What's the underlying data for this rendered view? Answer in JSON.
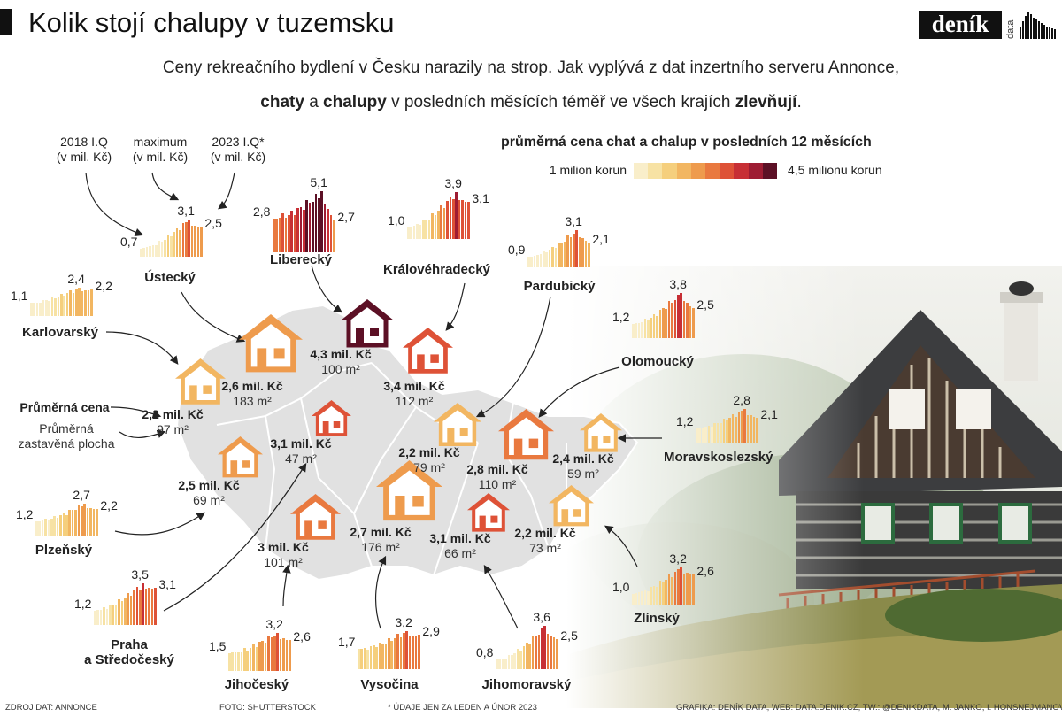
{
  "title": "Kolik stojí chalupy v tuzemsku",
  "logo": {
    "text": "deník",
    "sub": "data"
  },
  "subtitle": {
    "line1": "Ceny rekreačního bydlení v Česku narazily na strop. Jak vyplývá z dat inzertního serveru Annonce,",
    "line2_parts": [
      "chaty",
      " a ",
      "chalupy",
      " v posledních měsících téměř ve všech krajích ",
      "zlevňují",
      "."
    ]
  },
  "legend": {
    "title": "průměrná cena chat a chalup v posledních 12 měsících",
    "min_label": "1 milion korun",
    "max_label": "4,5 milionu korun",
    "colors": [
      "#f9eeca",
      "#f7e2a4",
      "#f5cf7d",
      "#f2b661",
      "#ee9b4d",
      "#e9793f",
      "#de5237",
      "#c72f35",
      "#9e1c33",
      "#5c1025"
    ]
  },
  "key": {
    "start": "2018 I.Q\n(v mil. Kč)",
    "max": "maximum\n(v mil. Kč)",
    "end": "2023 I.Q*\n(v mil. Kč)",
    "price": "Průměrná cena",
    "area": "Průměrná\nzastavěná plocha"
  },
  "chart_data": {
    "type": "bar",
    "title": "průměrná cena chat a chalup v posledních 12 měsících",
    "unit": "mil. Kč",
    "period": "2018 I.Q – 2023 I.Q",
    "series": [
      {
        "region": "Ústecký",
        "first": 0.7,
        "max": 3.1,
        "last": 2.5,
        "price_label": "2,6 mil. Kč",
        "area_label": "183 m²"
      },
      {
        "region": "Liberecký",
        "first": 2.8,
        "max": 5.1,
        "last": 2.7,
        "price_label": "4,3 mil. Kč",
        "area_label": "100 m²"
      },
      {
        "region": "Královéhradecký",
        "first": 1.0,
        "max": 3.9,
        "last": 3.1,
        "price_label": "3,4 mil. Kč",
        "area_label": "112 m²"
      },
      {
        "region": "Pardubický",
        "first": 0.9,
        "max": 3.1,
        "last": 2.1,
        "price_label": "2,2 mil. Kč",
        "area_label": "79 m²"
      },
      {
        "region": "Karlovarský",
        "first": 1.1,
        "max": 2.4,
        "last": 2.2,
        "price_label": "2,2 mil. Kč",
        "area_label": "97 m²"
      },
      {
        "region": "Olomoucký",
        "first": 1.2,
        "max": 3.8,
        "last": 2.5,
        "price_label": "2,8 mil. Kč",
        "area_label": "110 m²"
      },
      {
        "region": "Moravskoslezský",
        "first": 1.2,
        "max": 2.8,
        "last": 2.1,
        "price_label": "2,4 mil. Kč",
        "area_label": "59 m²"
      },
      {
        "region": "Plzeňský",
        "first": 1.2,
        "max": 2.7,
        "last": 2.2,
        "price_label": "2,5 mil. Kč",
        "area_label": "69 m²"
      },
      {
        "region": "Praha a Středočeský",
        "first": 1.2,
        "max": 3.5,
        "last": 3.1,
        "price_label": "3,1 mil. Kč",
        "area_label": "47 m²"
      },
      {
        "region": "Jihočeský",
        "first": 1.5,
        "max": 3.2,
        "last": 2.6,
        "price_label": "3 mil. Kč",
        "area_label": "101 m²"
      },
      {
        "region": "Vysočina",
        "first": 1.7,
        "max": 3.2,
        "last": 2.9,
        "price_label": "2,7 mil. Kč",
        "area_label": "176 m²"
      },
      {
        "region": "Jihomoravský",
        "first": 0.8,
        "max": 3.6,
        "last": 2.5,
        "price_label": "3,1 mil. Kč",
        "area_label": "66 m²"
      },
      {
        "region": "Zlínský",
        "first": 1.0,
        "max": 3.2,
        "last": 2.6,
        "price_label": "2,2 mil. Kč",
        "area_label": "73 m²"
      }
    ]
  },
  "footer": {
    "source": "ZDROJ DAT: ANNONCE",
    "photo": "FOTO: SHUTTERSTOCK",
    "note": "* ÚDAJE JEN ZA LEDEN A ÚNOR 2023",
    "credits": "GRAFIKA: DENÍK DATA, WEB: DATA.DENIK.CZ, TW.: @DENIKDATA, M. JANKO, I. HONSNEJMANOVÁ, J. RUSEK"
  }
}
